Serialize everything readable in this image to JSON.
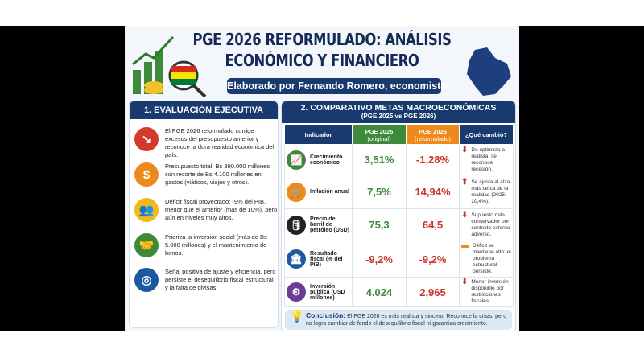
{
  "header": {
    "title_line1": "PGE 2026 REFORMULADO: ANÁLISIS",
    "title_line2": "ECONÓMICO Y FINANCIERO",
    "subtitle": "Elaborado por Fernando Romero, economista"
  },
  "left": {
    "title": "1. EVALUACIÓN EJECUTIVA",
    "items": [
      {
        "icon": "chart-down-icon",
        "color": "#d43a2b",
        "text": "El PGE 2026 reformulado corrige excesos del presupuesto anterior y reconoce la dura realidad económica del país."
      },
      {
        "icon": "money-bag-icon",
        "color": "#ee8a1c",
        "text": "Presupuesto total: Bs 390.000 millones con recorte de Bs 4.100 millones en gastos (viáticos, viajes y otros)."
      },
      {
        "icon": "people-icon",
        "color": "#f2b81c",
        "text": "Déficit fiscal proyectado: -9% del PIB, menor que el anterior (más de 10%), pero aún en niveles muy altos."
      },
      {
        "icon": "handshake-icon",
        "color": "#3f8a3a",
        "text": "Prioriza la inversión social (más de Bs 5.000 millones) y el mantenimiento de bonos."
      },
      {
        "icon": "target-icon",
        "color": "#1b5aa0",
        "text": "Señal positiva de ajuste y eficiencia, pero persiste el desequilibrio fiscal estructural y la falta de divisas."
      }
    ]
  },
  "right": {
    "title": "2. COMPARATIVO METAS MACROECONÓMICAS",
    "subtitle": "(PGE 2025 vs PGE 2026)",
    "columns": {
      "indicator": "Indicador",
      "pge2025": "PGE 2025",
      "pge2025_sub": "(original)",
      "pge2026": "PGE 2026",
      "pge2026_sub": "(reformulado)",
      "change": "¿Qué cambió?"
    },
    "rows": [
      {
        "icon": "growth-chart-icon",
        "color": "#3f8a3a",
        "label": "Crecimiento económico",
        "v2025": "3,51%",
        "v2026": "-1,28%",
        "trend": "down",
        "change": "De optimista a realista: se reconoce recesión."
      },
      {
        "icon": "cart-icon",
        "color": "#ee8a1c",
        "label": "Inflación anual",
        "v2025": "7,5%",
        "v2026": "14,94%",
        "trend": "up",
        "change": "Se ajusta al alza, más cerca de la realidad (2025: 20,4%)."
      },
      {
        "icon": "oil-barrel-icon",
        "color": "#222222",
        "label": "Precio del barril de petróleo (USD)",
        "v2025": "75,3",
        "v2026": "64,5",
        "trend": "down",
        "change": "Supuesto más conservador por contexto externo adverso."
      },
      {
        "icon": "bank-icon",
        "color": "#1b5aa0",
        "label": "Resultado fiscal (% del PIB)",
        "v2025": "-9,2%",
        "v2026": "-9,2%",
        "trend": "flat",
        "change": "Déficit se mantiene alto: el problema estructural persiste."
      },
      {
        "icon": "investment-icon",
        "color": "#6a3c96",
        "label": "Inversión pública (USD millones)",
        "v2025": "4.024",
        "v2026": "2,965",
        "trend": "down",
        "change": "Menor inversión disponible por restricciones fiscales."
      }
    ]
  },
  "conclusion": {
    "label": "Conclusión:",
    "text": "El PGE 2026 es más realista y sincero. Reconoce la crisis, pero no logra cambiar de fondo el desequilibrio fiscal ni garantiza crecimiento."
  },
  "colors": {
    "navy": "#183a6e",
    "green": "#3f8a3a",
    "orange": "#ee8a1c",
    "red": "#c8322b"
  }
}
